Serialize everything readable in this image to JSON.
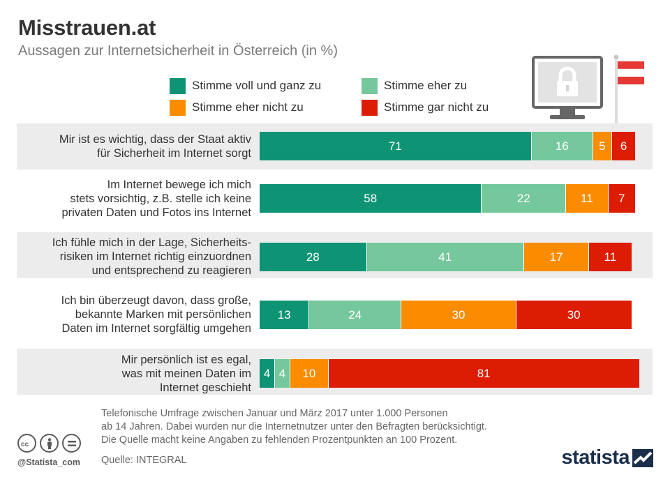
{
  "header": {
    "title": "Misstrauen.at",
    "subtitle": "Aussagen zur Internetsicherheit in Österreich (in %)"
  },
  "colors": {
    "voll": "#0e9474",
    "eher": "#74c89b",
    "eher_nicht": "#fb8c00",
    "gar_nicht": "#dd1c04"
  },
  "chart_data": {
    "type": "bar",
    "orientation": "horizontal",
    "stacked": true,
    "title": "Misstrauen.at",
    "subtitle": "Aussagen zur Internetsicherheit in Österreich (in %)",
    "unit": "%",
    "categories": [
      "Mir ist es wichtig, dass der Staat aktiv\nfür Sicherheit im Internet sorgt",
      "Im Internet bewege ich mich\nstets vorsichtig, z.B. stelle ich keine\nprivaten Daten und Fotos ins Internet",
      "Ich fühle mich in der Lage, Sicherheits-\nrisiken im Internet richtig einzuordnen\nund entsprechend zu reagieren",
      "Ich bin überzeugt davon, dass große,\nbekannte Marken mit persönlichen\nDaten im Internet sorgfältig umgehen",
      "Mir persönlich ist es egal,\nwas mit meinen Daten im\nInternet geschieht"
    ],
    "series": [
      {
        "name": "Stimme voll und ganz zu",
        "key": "voll",
        "values": [
          71,
          58,
          28,
          13,
          4
        ]
      },
      {
        "name": "Stimme eher zu",
        "key": "eher",
        "values": [
          16,
          22,
          41,
          24,
          4
        ]
      },
      {
        "name": "Stimme eher nicht zu",
        "key": "eher_nicht",
        "values": [
          5,
          11,
          17,
          30,
          10
        ]
      },
      {
        "name": "Stimme gar nicht zu",
        "key": "gar_nicht",
        "values": [
          6,
          7,
          11,
          30,
          81
        ]
      }
    ],
    "legend_position": "top"
  },
  "footer": {
    "note": "Telefonische Umfrage zwischen Januar und März 2017 unter 1.000 Personen\nab 14 Jahren. Dabei wurden nur die Internetnutzer unter den Befragten berücksichtigt.\nDie Quelle macht keine Angaben zu fehlenden Prozentpunkten an 100 Prozent.",
    "source": "Quelle: INTEGRAL",
    "handle": "@Statista_com",
    "brand": "statista",
    "cc_icons": [
      "cc-icon",
      "by-icon",
      "nd-icon"
    ]
  }
}
